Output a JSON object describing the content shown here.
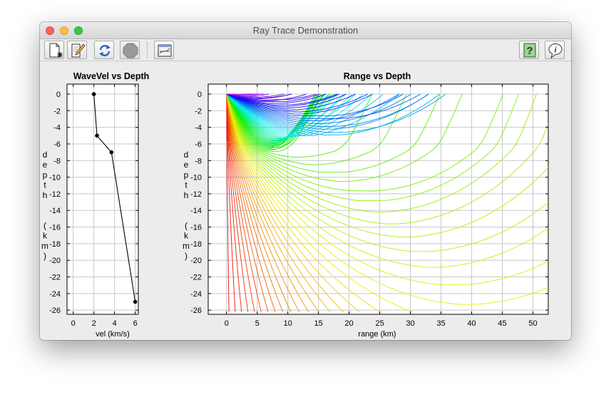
{
  "window": {
    "title": "Ray Trace Demonstration"
  },
  "toolbar": {
    "buttons": [
      {
        "name": "new-document",
        "icon": "new-document-icon"
      },
      {
        "name": "edit",
        "icon": "pencil-edit-icon"
      },
      {
        "name": "refresh",
        "icon": "refresh-arrows-icon"
      },
      {
        "name": "stop",
        "icon": "stop-octagon-icon"
      },
      {
        "name": "graph",
        "icon": "graph-window-icon"
      },
      {
        "name": "help",
        "icon": "help-question-icon"
      },
      {
        "name": "info",
        "icon": "info-balloon-icon"
      }
    ]
  },
  "colors": {
    "line": "#000000",
    "grid": "#c8c8c8",
    "panel": "#ffffff"
  },
  "chart_data": [
    {
      "type": "line",
      "title": "WaveVel vs Depth",
      "xlabel": "vel (km/s)",
      "ylabel": "depth (km)",
      "xlim": [
        -0.6,
        6.3
      ],
      "ylim": [
        -26.5,
        1.2
      ],
      "xticks": [
        0,
        2,
        4,
        6
      ],
      "yticks": [
        0,
        -2,
        -4,
        -6,
        -8,
        -10,
        -12,
        -14,
        -16,
        -18,
        -20,
        -22,
        -24,
        -26
      ],
      "grid": true,
      "series": [
        {
          "x": [
            2.0,
            2.3,
            3.7,
            6.0
          ],
          "y": [
            0,
            -5,
            -7,
            -25
          ]
        }
      ],
      "markers": true
    },
    {
      "type": "line",
      "title": "Range vs Depth",
      "xlabel": "range (km)",
      "ylabel": "depth (km)",
      "xlim": [
        -3,
        52.5
      ],
      "ylim": [
        -26.5,
        1.2
      ],
      "xticks": [
        0,
        5,
        10,
        15,
        20,
        25,
        30,
        35,
        40,
        45,
        50
      ],
      "yticks": [
        0,
        -2,
        -4,
        -6,
        -8,
        -10,
        -12,
        -14,
        -16,
        -18,
        -20,
        -22,
        -24,
        -26
      ],
      "grid": true,
      "ray_fan": {
        "source": [
          0,
          0
        ],
        "velocity_profile": {
          "depth": [
            0,
            5,
            7,
            25
          ],
          "vel": [
            2.0,
            2.3,
            3.7,
            6.0
          ]
        },
        "ray_count": 85,
        "color_map": "hue rainbow, red (steep) to violet (shallow)"
      }
    }
  ]
}
